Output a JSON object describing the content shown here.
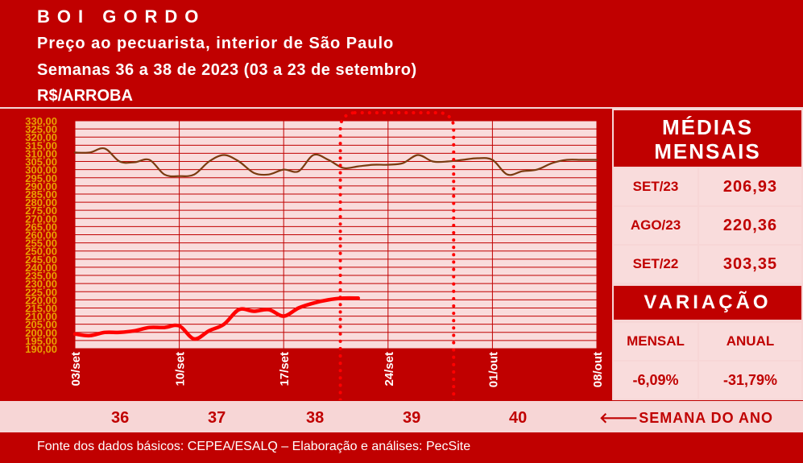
{
  "header": {
    "title": "BOI GORDO",
    "subtitle": "Preço ao pecuarista, interior de São Paulo",
    "period": "Semanas 36 a 38 de 2023 (03 a 23 de setembro)",
    "unit": "R$/ARROBA"
  },
  "colors": {
    "background": "#c00000",
    "plot_background": "#f9dcdc",
    "line_prev_year": "#7a3b10",
    "line_current_year": "#ff0000",
    "highlight": "#ff0000"
  },
  "medias": {
    "title": "MÉDIAS MENSAIS",
    "rows": [
      {
        "label": "SET/23",
        "value": "206,93"
      },
      {
        "label": "AGO/23",
        "value": "220,36"
      },
      {
        "label": "SET/22",
        "value": "303,35"
      }
    ]
  },
  "variacao": {
    "title": "VARIAÇÃO",
    "headers": [
      "MENSAL",
      "ANUAL"
    ],
    "values": [
      "-6,09%",
      "-31,79%"
    ]
  },
  "weeks": {
    "numbers": [
      "36",
      "37",
      "38",
      "39",
      "40"
    ],
    "highlighted": "38",
    "label": "SEMANA DO ANO"
  },
  "footer": {
    "source": "Fonte dos dados básicos: CEPEA/ESALQ – Elaboração e análises: PecSite"
  },
  "chart_data": {
    "type": "line",
    "ylim": [
      190,
      330
    ],
    "y_step": 5,
    "y_ticks": [
      "190,00",
      "195,00",
      "200,00",
      "205,00",
      "210,00",
      "215,00",
      "220,00",
      "225,00",
      "230,00",
      "235,00",
      "240,00",
      "245,00",
      "250,00",
      "255,00",
      "260,00",
      "265,00",
      "270,00",
      "275,00",
      "280,00",
      "285,00",
      "290,00",
      "295,00",
      "300,00",
      "305,00",
      "310,00",
      "315,00",
      "320,00",
      "325,00",
      "330,00"
    ],
    "x_ticks": [
      "03/set",
      "10/set",
      "17/set",
      "24/set",
      "01/out",
      "08/out"
    ],
    "x_range": [
      0,
      35
    ],
    "highlight_range": [
      17.8,
      25.4
    ],
    "series": [
      {
        "x": [
          0,
          1,
          2,
          3,
          4,
          5,
          6,
          7,
          8,
          9,
          10,
          11,
          12,
          13,
          14,
          15,
          16,
          17,
          18,
          19,
          20,
          21,
          22,
          23,
          24,
          25,
          26,
          27,
          28,
          29,
          30,
          31,
          32,
          33,
          34,
          35
        ],
        "values": [
          310.5,
          310.5,
          313,
          305,
          304.5,
          306,
          297,
          296,
          297,
          305,
          309,
          305,
          298,
          297,
          300,
          299,
          309,
          306,
          301,
          302,
          303,
          303,
          304,
          309,
          305,
          305,
          306,
          307,
          306,
          297,
          299,
          300,
          304,
          306,
          306,
          306
        ]
      },
      {
        "x": [
          0,
          1,
          2,
          3,
          4,
          5,
          6,
          7,
          8,
          9,
          10,
          11,
          12,
          13,
          14,
          15,
          16,
          17,
          18,
          19,
          20,
          21,
          22,
          23,
          24,
          25,
          26,
          27,
          28,
          29,
          30,
          31,
          32,
          33,
          34,
          35
        ],
        "values": [
          199,
          198,
          200,
          200,
          201,
          203,
          203,
          204,
          196,
          201,
          205,
          214,
          213,
          214,
          210,
          215,
          218,
          220,
          221,
          221,
          null,
          null,
          null,
          null,
          null,
          null,
          null,
          null,
          null,
          null,
          null,
          null,
          null,
          null,
          null,
          null
        ]
      }
    ]
  }
}
